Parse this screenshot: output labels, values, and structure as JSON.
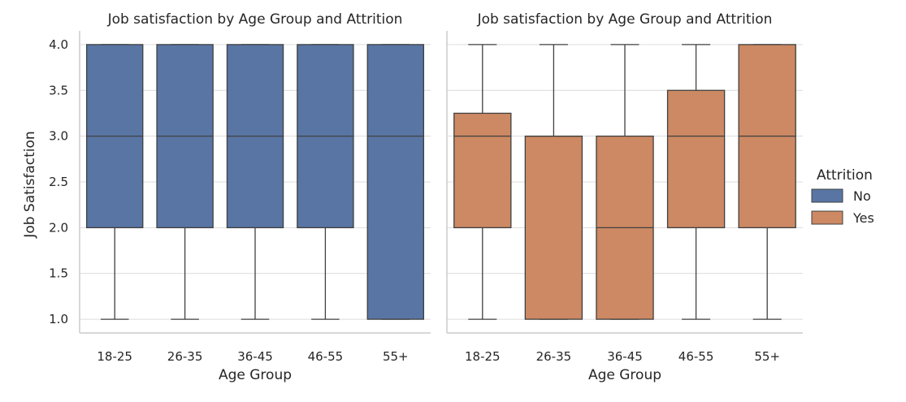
{
  "chart_data": [
    {
      "type": "box",
      "title": "Job satisfaction by Age Group and Attrition",
      "xlabel": "Age Group",
      "ylabel": "Job Satisfaction",
      "ylim": [
        0.85,
        4.15
      ],
      "yticks": [
        1.0,
        1.5,
        2.0,
        2.5,
        3.0,
        3.5,
        4.0
      ],
      "categories": [
        "18-25",
        "26-35",
        "36-45",
        "46-55",
        "55+"
      ],
      "grid": true,
      "series": [
        {
          "name": "No",
          "color": "#5875a4",
          "boxes": [
            {
              "min": 1.0,
              "q1": 2.0,
              "median": 3.0,
              "q3": 4.0,
              "max": 4.0
            },
            {
              "min": 1.0,
              "q1": 2.0,
              "median": 3.0,
              "q3": 4.0,
              "max": 4.0
            },
            {
              "min": 1.0,
              "q1": 2.0,
              "median": 3.0,
              "q3": 4.0,
              "max": 4.0
            },
            {
              "min": 1.0,
              "q1": 2.0,
              "median": 3.0,
              "q3": 4.0,
              "max": 4.0
            },
            {
              "min": 1.0,
              "q1": 1.0,
              "median": 3.0,
              "q3": 4.0,
              "max": 4.0
            }
          ]
        }
      ]
    },
    {
      "type": "box",
      "title": "Job satisfaction by Age Group and Attrition",
      "xlabel": "Age Group",
      "ylabel": "",
      "ylim": [
        0.85,
        4.15
      ],
      "yticks": [
        1.0,
        1.5,
        2.0,
        2.5,
        3.0,
        3.5,
        4.0
      ],
      "categories": [
        "18-25",
        "26-35",
        "36-45",
        "46-55",
        "55+"
      ],
      "grid": true,
      "series": [
        {
          "name": "Yes",
          "color": "#cc8963",
          "boxes": [
            {
              "min": 1.0,
              "q1": 2.0,
              "median": 3.0,
              "q3": 3.25,
              "max": 4.0
            },
            {
              "min": 1.0,
              "q1": 1.0,
              "median": 3.0,
              "q3": 3.0,
              "max": 4.0
            },
            {
              "min": 1.0,
              "q1": 1.0,
              "median": 2.0,
              "q3": 3.0,
              "max": 4.0
            },
            {
              "min": 1.0,
              "q1": 2.0,
              "median": 3.0,
              "q3": 3.5,
              "max": 4.0
            },
            {
              "min": 1.0,
              "q1": 2.0,
              "median": 3.0,
              "q3": 4.0,
              "max": 4.0
            }
          ]
        }
      ]
    }
  ],
  "legend": {
    "title": "Attrition",
    "placement": "right",
    "items": [
      {
        "label": "No",
        "color": "#5875a4"
      },
      {
        "label": "Yes",
        "color": "#cc8963"
      }
    ]
  },
  "style": {
    "grid_color": "#dcdcdc",
    "line_color": "#404040",
    "spine_color": "#cccccc"
  }
}
